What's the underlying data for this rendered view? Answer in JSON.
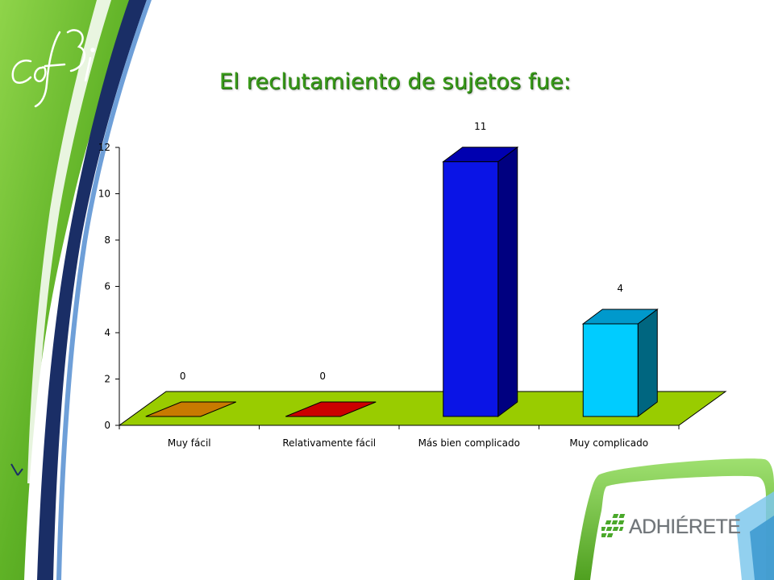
{
  "slide": {
    "brand_text": "ADHIÉRETE"
  },
  "colors": {
    "title": "#3a9b1a",
    "floor": "#99cc00",
    "sidebar_green": "#6bbf2a",
    "sidebar_dark": "#1a2e66"
  },
  "chart_data": {
    "type": "bar",
    "title": "El reclutamiento de sujetos fue:",
    "categories": [
      "Muy fácil",
      "Relativamente fácil",
      "Más bien complicado",
      "Muy complicado"
    ],
    "values": [
      0,
      0,
      11,
      4
    ],
    "data_labels": [
      "0",
      "0",
      "11",
      "4"
    ],
    "bar_colors": [
      "#c87a00",
      "#cc0000",
      "#0a14e6",
      "#00ccff"
    ],
    "bar_side_colors": [
      "#8a5400",
      "#880000",
      "#000080",
      "#006680"
    ],
    "bar_top_colors": [
      "#b06a00",
      "#b00000",
      "#0000b0",
      "#0099cc"
    ],
    "ylim": [
      0,
      12
    ],
    "yticks": [
      0,
      2,
      4,
      6,
      8,
      10,
      12
    ],
    "grid": false,
    "legend": "none",
    "style": "3d-column"
  }
}
